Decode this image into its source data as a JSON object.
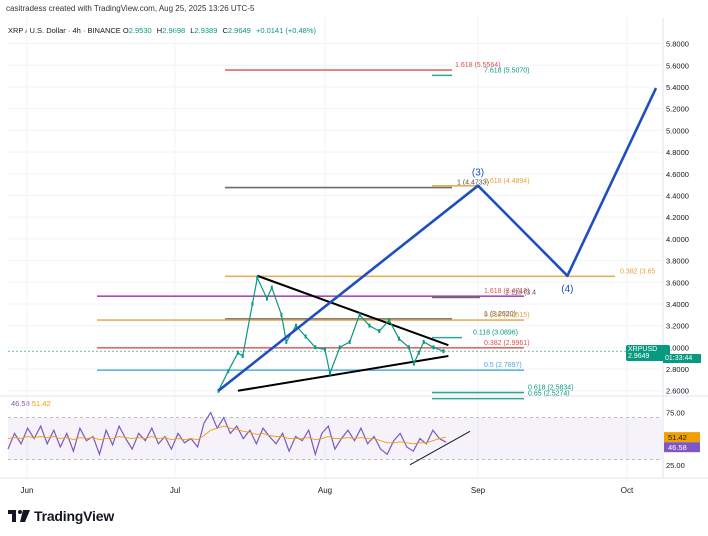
{
  "header": {
    "text": "casitradess created with TradingView.com, Aug 25, 2025 13:26 UTC-5"
  },
  "legend": {
    "symbol": "XRP / U.S. Dollar · 4h · BINANCE",
    "o_label": "O",
    "o_value": "2.9530",
    "h_label": "H",
    "h_value": "2.9698",
    "l_label": "L",
    "l_value": "2.9389",
    "c_label": "C",
    "c_value": "2.9649",
    "change": "+0.0141 (+0.48%)"
  },
  "rsi_legend": {
    "rsi": "46.58",
    "ma": "51.42"
  },
  "price_tag": {
    "symbol": "XRPUSD",
    "price": "2.9649",
    "countdown": "01:33:44"
  },
  "brand": {
    "name": "TradingView"
  },
  "colors": {
    "up": "#089981",
    "wave": "#1f4fbf",
    "rsi": "#7e57c2",
    "rsi_ma": "#f0a000"
  },
  "chart_data": [
    {
      "type": "line",
      "title": "XRP / U.S. Dollar · 4h · BINANCE",
      "x_ticks": [
        "Jun",
        "Jul",
        "Aug",
        "Sep",
        "Oct"
      ],
      "y_ticks": [
        "5.8000",
        "5.6000",
        "5.4000",
        "5.2000",
        "5.0000",
        "4.8000",
        "4.6000",
        "4.4000",
        "4.2000",
        "4.0000",
        "3.8000",
        "3.6000",
        "3.4000",
        "3.2000",
        "3.0000",
        "2.8000",
        "2.6000"
      ],
      "ylim": [
        2.57,
        5.87
      ],
      "price_series": [
        {
          "x": "Jul 10",
          "y": 2.6
        },
        {
          "x": "Jul 12",
          "y": 2.78
        },
        {
          "x": "Jul 14",
          "y": 2.95
        },
        {
          "x": "Jul 15",
          "y": 2.92
        },
        {
          "x": "Jul 17",
          "y": 3.4
        },
        {
          "x": "Jul 18",
          "y": 3.64
        },
        {
          "x": "Jul 20",
          "y": 3.45
        },
        {
          "x": "Jul 21",
          "y": 3.55
        },
        {
          "x": "Jul 23",
          "y": 3.3
        },
        {
          "x": "Jul 24",
          "y": 3.05
        },
        {
          "x": "Jul 26",
          "y": 3.2
        },
        {
          "x": "Jul 28",
          "y": 3.1
        },
        {
          "x": "Jul 30",
          "y": 3.0
        },
        {
          "x": "Aug 1",
          "y": 2.98
        },
        {
          "x": "Aug 2",
          "y": 2.76
        },
        {
          "x": "Aug 4",
          "y": 3.0
        },
        {
          "x": "Aug 6",
          "y": 3.05
        },
        {
          "x": "Aug 8",
          "y": 3.3
        },
        {
          "x": "Aug 10",
          "y": 3.2
        },
        {
          "x": "Aug 12",
          "y": 3.15
        },
        {
          "x": "Aug 14",
          "y": 3.25
        },
        {
          "x": "Aug 16",
          "y": 3.08
        },
        {
          "x": "Aug 18",
          "y": 3.0
        },
        {
          "x": "Aug 19",
          "y": 2.85
        },
        {
          "x": "Aug 20",
          "y": 2.95
        },
        {
          "x": "Aug 21",
          "y": 3.05
        },
        {
          "x": "Aug 23",
          "y": 3.0
        },
        {
          "x": "Aug 25",
          "y": 2.9649
        }
      ],
      "projection": {
        "name": "wave",
        "points": [
          {
            "x": "Jul 10",
            "y": 2.6
          },
          {
            "x": "Sep 1",
            "y": 4.49
          },
          {
            "x": "Sep 19",
            "y": 3.66
          },
          {
            "x": "Oct 7",
            "y": 5.39
          }
        ],
        "labels": [
          "(3)",
          "(4)"
        ]
      },
      "levels": [
        {
          "label": "1.618 (5.5564)",
          "y": 5.5564,
          "color": "#d9534f"
        },
        {
          "label": "7.618 (5.5070)",
          "y": 5.507,
          "color": "#089981"
        },
        {
          "label": "1 (4.4733)",
          "y": 4.4733,
          "color": "#555555"
        },
        {
          "label": "1.618 (4.4894)",
          "y": 4.4894,
          "color": "#e6a23c"
        },
        {
          "label": "0.382 (3.65",
          "y": 3.655,
          "color": "#e6a23c"
        },
        {
          "label": "1.618 (3.4718)",
          "y": 3.4718,
          "color": "#d9534f"
        },
        {
          "label": "1.118 (3.4",
          "y": 3.46,
          "color": "#555555"
        },
        {
          "label": "1 (3.2620)",
          "y": 3.262,
          "color": "#555555"
        },
        {
          "label": "0.236 (3.2515)",
          "y": 3.2515,
          "color": "#e6a23c"
        },
        {
          "label": "0.118 (3.0896)",
          "y": 3.0896,
          "color": "#089981"
        },
        {
          "label": "0.382 (2.9961)",
          "y": 2.9961,
          "color": "#d9534f"
        },
        {
          "label": "0.5 (2.7897)",
          "y": 2.7897,
          "color": "#4aa8d8"
        },
        {
          "label": "0.618 (2.5834)",
          "y": 2.5834,
          "color": "#089981"
        },
        {
          "label": "0.65 (2.5274)",
          "y": 2.5274,
          "color": "#089981"
        }
      ],
      "triangle": {
        "upper": [
          {
            "x": "Jul 18",
            "y": 3.66
          },
          {
            "x": "Aug 26",
            "y": 3.02
          }
        ],
        "lower": [
          {
            "x": "Jul 14",
            "y": 2.6
          },
          {
            "x": "Aug 26",
            "y": 2.92
          }
        ]
      }
    },
    {
      "type": "line",
      "title": "RSI",
      "y_ticks": [
        "75.00",
        "25.00"
      ],
      "ylim": [
        20,
        85
      ],
      "series": [
        {
          "values": [
            40,
            55,
            45,
            60,
            50,
            62,
            45,
            58,
            42,
            55,
            38,
            60,
            48,
            52,
            35,
            58,
            44,
            62,
            50,
            40,
            55,
            48,
            60,
            45,
            52,
            40,
            55,
            46,
            50,
            42,
            65,
            75,
            60,
            70,
            55,
            62,
            50,
            58,
            45,
            60,
            52,
            45,
            55,
            38,
            52,
            48,
            58,
            35,
            55,
            62,
            40,
            50,
            58,
            48,
            60,
            45,
            52,
            40,
            35,
            48,
            55,
            42,
            38,
            50,
            45,
            58,
            50,
            46.58
          ]
        },
        {
          "values": [
            50,
            51,
            50,
            52,
            51,
            52,
            51,
            52,
            50,
            51,
            49,
            51,
            50,
            51,
            49,
            50,
            50,
            52,
            51,
            50,
            51,
            50,
            52,
            50,
            51,
            49,
            50,
            49,
            50,
            49,
            53,
            58,
            60,
            62,
            60,
            59,
            57,
            56,
            54,
            55,
            53,
            52,
            52,
            50,
            50,
            50,
            51,
            49,
            50,
            52,
            50,
            50,
            51,
            50,
            51,
            50,
            50,
            48,
            46,
            46,
            47,
            46,
            45,
            46,
            46,
            48,
            50,
            51.42
          ]
        }
      ]
    }
  ]
}
